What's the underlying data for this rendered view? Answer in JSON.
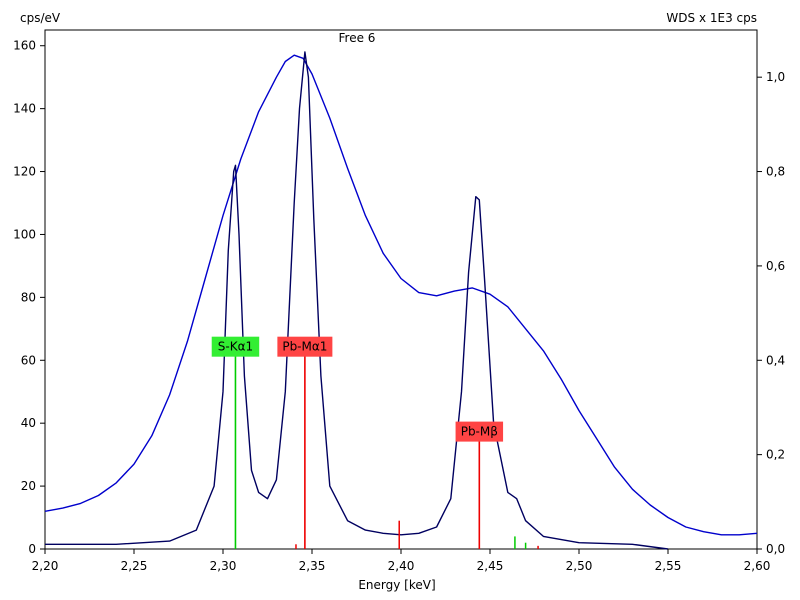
{
  "chart_data": {
    "type": "line",
    "title": "Free 6",
    "xlabel": "Energy [keV]",
    "ylabel": "cps/eV",
    "y2label": "WDS x 1E3 cps",
    "xlim": [
      2.2,
      2.6
    ],
    "ylim": [
      0,
      165
    ],
    "y2lim": [
      0,
      1.1
    ],
    "x_ticks": [
      "2,20",
      "2,25",
      "2,30",
      "2,35",
      "2,40",
      "2,45",
      "2,50",
      "2,55",
      "2,60"
    ],
    "y_ticks": [
      "0",
      "20",
      "40",
      "60",
      "80",
      "100",
      "120",
      "140",
      "160"
    ],
    "y2_ticks": [
      "0,0",
      "0,2",
      "0,4",
      "0,6",
      "0,8",
      "1,0"
    ],
    "grid": false,
    "series": [
      {
        "axis": "y",
        "color": "#0000cc",
        "x": [
          2.2,
          2.21,
          2.22,
          2.23,
          2.24,
          2.25,
          2.26,
          2.27,
          2.28,
          2.29,
          2.3,
          2.31,
          2.32,
          2.33,
          2.335,
          2.34,
          2.345,
          2.35,
          2.36,
          2.37,
          2.38,
          2.39,
          2.4,
          2.41,
          2.42,
          2.43,
          2.44,
          2.45,
          2.46,
          2.47,
          2.48,
          2.49,
          2.5,
          2.51,
          2.52,
          2.53,
          2.54,
          2.55,
          2.56,
          2.57,
          2.58,
          2.59,
          2.6
        ],
        "y": [
          12,
          13,
          14.5,
          17,
          21,
          27,
          36,
          49,
          66,
          86,
          106,
          124,
          139,
          150,
          155,
          157,
          156,
          151,
          137,
          121,
          106,
          94,
          86,
          81.5,
          80.5,
          82,
          83,
          81,
          77,
          70,
          63,
          54,
          44,
          35,
          26,
          19,
          14,
          10,
          7,
          5.5,
          4.5,
          4.5,
          5
        ]
      },
      {
        "axis": "y",
        "color": "#000060",
        "x": [
          2.2,
          2.24,
          2.27,
          2.285,
          2.295,
          2.3,
          2.303,
          2.306,
          2.307,
          2.309,
          2.312,
          2.316,
          2.32,
          2.325,
          2.33,
          2.335,
          2.34,
          2.343,
          2.346,
          2.348,
          2.351,
          2.355,
          2.36,
          2.37,
          2.38,
          2.39,
          2.4,
          2.41,
          2.42,
          2.428,
          2.434,
          2.438,
          2.442,
          2.444,
          2.447,
          2.452,
          2.46,
          2.465,
          2.47,
          2.48,
          2.5,
          2.53,
          2.55
        ],
        "y": [
          1.5,
          1.5,
          2.5,
          6,
          20,
          50,
          95,
          120,
          122,
          100,
          55,
          25,
          18,
          16,
          22,
          50,
          110,
          140,
          158,
          150,
          105,
          55,
          20,
          9,
          6,
          5,
          4.5,
          5,
          7,
          16,
          50,
          88,
          112,
          111,
          85,
          40,
          18,
          16,
          9,
          4,
          2,
          1.5,
          0
        ]
      }
    ],
    "markers": [
      {
        "label": "S-Kα1",
        "x": 2.307,
        "y": 62,
        "color": "#00cc00",
        "box_color": "#33ee33",
        "box_y": 67.5
      },
      {
        "label": "Pb-Mα1",
        "x": 2.346,
        "y": 64,
        "color": "#ee0000",
        "box_color": "#ff4444",
        "box_y": 67.5
      },
      {
        "label": "Pb-Mβ",
        "x": 2.444,
        "y": 36,
        "color": "#ee0000",
        "box_color": "#ff4444",
        "box_y": 40.5
      }
    ],
    "minor_lines": [
      {
        "x": 2.341,
        "y": 1.5,
        "color": "#ee0000"
      },
      {
        "x": 2.399,
        "y": 9,
        "color": "#ee0000"
      },
      {
        "x": 2.464,
        "y": 4,
        "color": "#00cc00"
      },
      {
        "x": 2.47,
        "y": 2,
        "color": "#00cc00"
      },
      {
        "x": 2.477,
        "y": 1,
        "color": "#ee0000"
      }
    ]
  }
}
